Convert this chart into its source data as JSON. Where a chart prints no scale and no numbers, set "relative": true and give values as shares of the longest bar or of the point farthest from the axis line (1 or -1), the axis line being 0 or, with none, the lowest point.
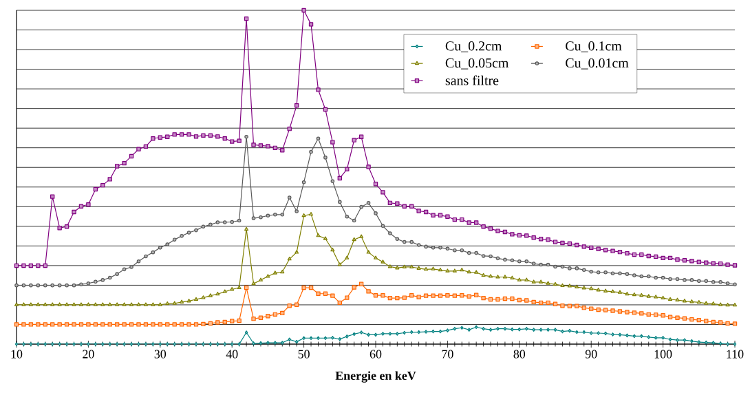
{
  "chart_data": {
    "type": "line",
    "xlabel": "**Energie en keV**",
    "relative": true,
    "grid": "y",
    "legend": "top right",
    "line_style": "solid",
    "xlim": [
      10,
      110
    ],
    "xticks": [
      10,
      20,
      30,
      40,
      50,
      60,
      70,
      80,
      90,
      100,
      110
    ],
    "x": [
      10,
      11,
      12,
      13,
      14,
      15,
      16,
      17,
      18,
      19,
      20,
      21,
      22,
      23,
      24,
      25,
      26,
      27,
      28,
      29,
      30,
      31,
      32,
      33,
      34,
      35,
      36,
      37,
      38,
      39,
      40,
      41,
      42,
      43,
      44,
      45,
      46,
      47,
      48,
      49,
      50,
      51,
      52,
      53,
      54,
      55,
      56,
      57,
      58,
      59,
      60,
      61,
      62,
      63,
      64,
      65,
      66,
      67,
      68,
      69,
      70,
      71,
      72,
      73,
      74,
      75,
      76,
      77,
      78,
      79,
      80,
      81,
      82,
      83,
      84,
      85,
      86,
      87,
      88,
      89,
      90,
      91,
      92,
      93,
      94,
      95,
      96,
      97,
      98,
      99,
      100,
      101,
      102,
      103,
      104,
      105,
      106,
      107,
      108,
      109,
      110
    ],
    "series": [
      {
        "name": "Cu_0.2cm",
        "color": "#008080",
        "marker": "diamond",
        "values": [
          0,
          0,
          0,
          0,
          0,
          0,
          0,
          0,
          0,
          0,
          0,
          0,
          0,
          0,
          0,
          0,
          0,
          0,
          0,
          0,
          0,
          0,
          0,
          0,
          0,
          0,
          0,
          0,
          0,
          0,
          0,
          0,
          0.035,
          0.002,
          0.003,
          0.004,
          0.004,
          0.004,
          0.014,
          0.007,
          0.018,
          0.018,
          0.018,
          0.018,
          0.019,
          0.015,
          0.023,
          0.03,
          0.035,
          0.028,
          0.028,
          0.031,
          0.031,
          0.031,
          0.034,
          0.036,
          0.036,
          0.037,
          0.038,
          0.038,
          0.041,
          0.046,
          0.049,
          0.043,
          0.051,
          0.046,
          0.043,
          0.046,
          0.046,
          0.044,
          0.044,
          0.046,
          0.043,
          0.043,
          0.043,
          0.043,
          0.038,
          0.04,
          0.036,
          0.036,
          0.033,
          0.033,
          0.032,
          0.029,
          0.028,
          0.026,
          0.024,
          0.024,
          0.021,
          0.019,
          0.019,
          0.014,
          0.012,
          0.012,
          0.009,
          0.006,
          0.005,
          0.004,
          0.002,
          0,
          0
        ]
      },
      {
        "name": "Cu_0.1cm",
        "color": "#ff6600",
        "marker": "square",
        "values": [
          0.059,
          0.059,
          0.059,
          0.059,
          0.059,
          0.059,
          0.059,
          0.059,
          0.059,
          0.059,
          0.059,
          0.059,
          0.059,
          0.059,
          0.059,
          0.059,
          0.059,
          0.059,
          0.059,
          0.059,
          0.059,
          0.059,
          0.059,
          0.059,
          0.059,
          0.059,
          0.06,
          0.062,
          0.065,
          0.066,
          0.069,
          0.07,
          0.169,
          0.076,
          0.079,
          0.084,
          0.089,
          0.093,
          0.115,
          0.118,
          0.169,
          0.169,
          0.151,
          0.151,
          0.145,
          0.124,
          0.139,
          0.17,
          0.18,
          0.158,
          0.146,
          0.146,
          0.138,
          0.138,
          0.139,
          0.146,
          0.141,
          0.145,
          0.145,
          0.145,
          0.146,
          0.145,
          0.146,
          0.143,
          0.147,
          0.138,
          0.134,
          0.134,
          0.136,
          0.136,
          0.132,
          0.131,
          0.126,
          0.124,
          0.124,
          0.12,
          0.115,
          0.114,
          0.114,
          0.109,
          0.106,
          0.103,
          0.102,
          0.1,
          0.098,
          0.096,
          0.094,
          0.092,
          0.089,
          0.088,
          0.086,
          0.081,
          0.079,
          0.077,
          0.074,
          0.072,
          0.069,
          0.066,
          0.065,
          0.062,
          0.061
        ]
      },
      {
        "name": "Cu_0.05cm",
        "color": "#808000",
        "marker": "triangle",
        "values": [
          0.118,
          0.118,
          0.118,
          0.118,
          0.118,
          0.118,
          0.118,
          0.118,
          0.118,
          0.118,
          0.118,
          0.118,
          0.118,
          0.118,
          0.118,
          0.118,
          0.118,
          0.118,
          0.118,
          0.118,
          0.118,
          0.121,
          0.122,
          0.126,
          0.129,
          0.134,
          0.139,
          0.145,
          0.15,
          0.157,
          0.164,
          0.169,
          0.344,
          0.181,
          0.192,
          0.203,
          0.213,
          0.216,
          0.255,
          0.275,
          0.385,
          0.389,
          0.325,
          0.316,
          0.282,
          0.238,
          0.258,
          0.313,
          0.322,
          0.275,
          0.258,
          0.246,
          0.232,
          0.228,
          0.231,
          0.231,
          0.227,
          0.224,
          0.225,
          0.222,
          0.219,
          0.219,
          0.222,
          0.216,
          0.215,
          0.206,
          0.203,
          0.201,
          0.201,
          0.198,
          0.192,
          0.192,
          0.186,
          0.186,
          0.182,
          0.179,
          0.175,
          0.174,
          0.171,
          0.168,
          0.166,
          0.162,
          0.159,
          0.157,
          0.155,
          0.15,
          0.148,
          0.146,
          0.143,
          0.141,
          0.138,
          0.134,
          0.132,
          0.129,
          0.127,
          0.125,
          0.122,
          0.121,
          0.118,
          0.117,
          0.117
        ]
      },
      {
        "name": "Cu_0.01cm",
        "color": "#595959",
        "marker": "circle",
        "values": [
          0.176,
          0.176,
          0.176,
          0.176,
          0.176,
          0.176,
          0.176,
          0.176,
          0.176,
          0.179,
          0.182,
          0.187,
          0.192,
          0.199,
          0.21,
          0.224,
          0.231,
          0.248,
          0.263,
          0.275,
          0.289,
          0.299,
          0.313,
          0.324,
          0.334,
          0.341,
          0.352,
          0.358,
          0.365,
          0.365,
          0.366,
          0.37,
          0.621,
          0.377,
          0.38,
          0.385,
          0.388,
          0.388,
          0.439,
          0.398,
          0.485,
          0.576,
          0.616,
          0.559,
          0.488,
          0.426,
          0.382,
          0.37,
          0.411,
          0.423,
          0.392,
          0.354,
          0.332,
          0.315,
          0.306,
          0.306,
          0.297,
          0.292,
          0.289,
          0.289,
          0.286,
          0.281,
          0.281,
          0.273,
          0.273,
          0.264,
          0.263,
          0.257,
          0.253,
          0.251,
          0.248,
          0.248,
          0.241,
          0.238,
          0.238,
          0.232,
          0.232,
          0.227,
          0.227,
          0.222,
          0.217,
          0.215,
          0.215,
          0.212,
          0.212,
          0.21,
          0.206,
          0.203,
          0.203,
          0.199,
          0.199,
          0.195,
          0.195,
          0.192,
          0.192,
          0.189,
          0.189,
          0.186,
          0.186,
          0.182,
          0.179
        ]
      },
      {
        "name": "sans filtre",
        "color": "#800080",
        "marker": "square",
        "values": [
          0.235,
          0.235,
          0.235,
          0.235,
          0.235,
          0.442,
          0.348,
          0.352,
          0.396,
          0.413,
          0.418,
          0.464,
          0.476,
          0.494,
          0.533,
          0.542,
          0.563,
          0.584,
          0.592,
          0.616,
          0.619,
          0.621,
          0.628,
          0.628,
          0.628,
          0.622,
          0.625,
          0.625,
          0.622,
          0.616,
          0.607,
          0.609,
          0.975,
          0.597,
          0.595,
          0.593,
          0.588,
          0.581,
          0.645,
          0.715,
          1,
          0.958,
          0.762,
          0.703,
          0.605,
          0.497,
          0.524,
          0.611,
          0.621,
          0.531,
          0.48,
          0.455,
          0.423,
          0.421,
          0.413,
          0.413,
          0.399,
          0.396,
          0.386,
          0.386,
          0.382,
          0.373,
          0.373,
          0.364,
          0.364,
          0.352,
          0.346,
          0.339,
          0.336,
          0.329,
          0.326,
          0.325,
          0.319,
          0.315,
          0.313,
          0.306,
          0.303,
          0.301,
          0.297,
          0.292,
          0.289,
          0.285,
          0.282,
          0.279,
          0.276,
          0.272,
          0.268,
          0.268,
          0.264,
          0.262,
          0.258,
          0.258,
          0.253,
          0.251,
          0.249,
          0.246,
          0.244,
          0.242,
          0.241,
          0.238,
          0.236
        ]
      }
    ]
  }
}
